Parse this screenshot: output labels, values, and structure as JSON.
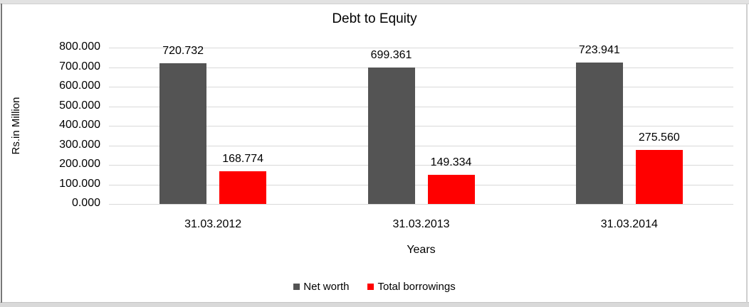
{
  "chart_data": {
    "type": "bar",
    "title": "Debt to Equity",
    "xlabel": "Years",
    "ylabel": "Rs.in Million",
    "categories": [
      "31.03.2012",
      "31.03.2013",
      "31.03.2014"
    ],
    "series": [
      {
        "name": "Net worth",
        "color": "#545454",
        "values": [
          720.732,
          699.361,
          723.941
        ]
      },
      {
        "name": "Total borrowings",
        "color": "#ff0000",
        "values": [
          168.774,
          149.334,
          275.56
        ]
      }
    ],
    "value_label_decimals": 3,
    "ylim": [
      0,
      800
    ],
    "ytick_step": 100,
    "ytick_labels": [
      "0.000",
      "100.000",
      "200.000",
      "300.000",
      "400.000",
      "500.000",
      "600.000",
      "700.000",
      "800.000"
    ],
    "grid": true,
    "legend_position": "bottom",
    "gridline_color": "#d9d9d9"
  }
}
